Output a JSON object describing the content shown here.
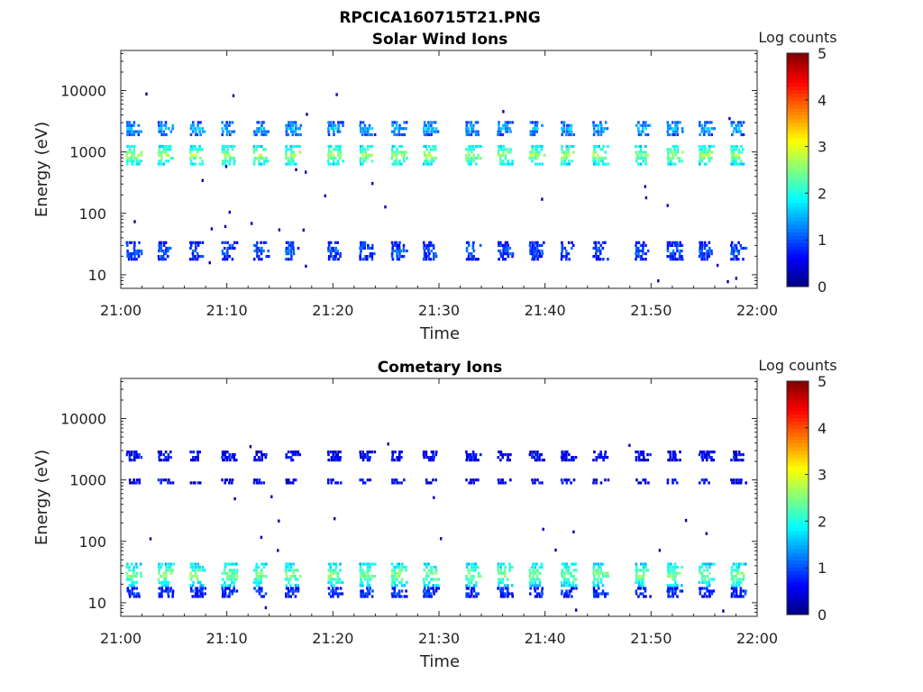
{
  "figure_title": "RPCICA160715T21.PNG",
  "chart_data": [
    {
      "type": "heatmap",
      "title": "Solar Wind Ions",
      "xlabel": "Time",
      "ylabel": "Energy (eV)",
      "x_ticks": [
        "21:00",
        "21:10",
        "21:20",
        "21:30",
        "21:40",
        "21:50",
        "22:00"
      ],
      "xlim": [
        "21:00",
        "22:00"
      ],
      "y_scale": "log",
      "y_ticks": [
        10,
        100,
        1000,
        10000
      ],
      "ylim": [
        6,
        45000
      ],
      "colorbar": {
        "label": "Log counts",
        "ticks": [
          0,
          1,
          2,
          3,
          4,
          5
        ],
        "range": [
          0,
          5
        ],
        "colormap": "jet"
      },
      "sweep_times": [
        "21:01",
        "21:04",
        "21:07",
        "21:10",
        "21:13",
        "21:16",
        "21:20",
        "21:23",
        "21:26",
        "21:29",
        "21:33",
        "21:36",
        "21:39",
        "21:42",
        "21:45",
        "21:49",
        "21:52",
        "21:55",
        "21:58"
      ],
      "bands": [
        {
          "e_lo": 1800,
          "e_hi": 3200,
          "log_counts": 1.3
        },
        {
          "e_lo": 600,
          "e_hi": 1300,
          "log_counts": 2.3
        },
        {
          "e_lo": 17,
          "e_hi": 35,
          "log_counts": 0.9
        }
      ],
      "scattered_energies": [
        9000,
        4000,
        500,
        300,
        180,
        120,
        70,
        50,
        8,
        14
      ]
    },
    {
      "type": "heatmap",
      "title": "Cometary Ions",
      "xlabel": "Time",
      "ylabel": "Energy (eV)",
      "x_ticks": [
        "21:00",
        "21:10",
        "21:20",
        "21:30",
        "21:40",
        "21:50",
        "22:00"
      ],
      "xlim": [
        "21:00",
        "22:00"
      ],
      "y_scale": "log",
      "y_ticks": [
        10,
        100,
        1000,
        10000
      ],
      "ylim": [
        6,
        45000
      ],
      "colorbar": {
        "label": "Log counts",
        "ticks": [
          0,
          1,
          2,
          3,
          4,
          5
        ],
        "range": [
          0,
          5
        ],
        "colormap": "jet"
      },
      "sweep_times": [
        "21:01",
        "21:04",
        "21:07",
        "21:10",
        "21:13",
        "21:16",
        "21:20",
        "21:23",
        "21:26",
        "21:29",
        "21:33",
        "21:36",
        "21:39",
        "21:42",
        "21:45",
        "21:49",
        "21:52",
        "21:55",
        "21:58"
      ],
      "bands": [
        {
          "e_lo": 2000,
          "e_hi": 3000,
          "log_counts": 0.6
        },
        {
          "e_lo": 850,
          "e_hi": 1050,
          "log_counts": 0.6
        },
        {
          "e_lo": 18,
          "e_hi": 45,
          "log_counts": 2.2
        },
        {
          "e_lo": 12,
          "e_hi": 18,
          "log_counts": 0.8
        }
      ],
      "scattered_energies": [
        4000,
        500,
        230,
        140,
        100,
        65,
        8
      ]
    }
  ]
}
